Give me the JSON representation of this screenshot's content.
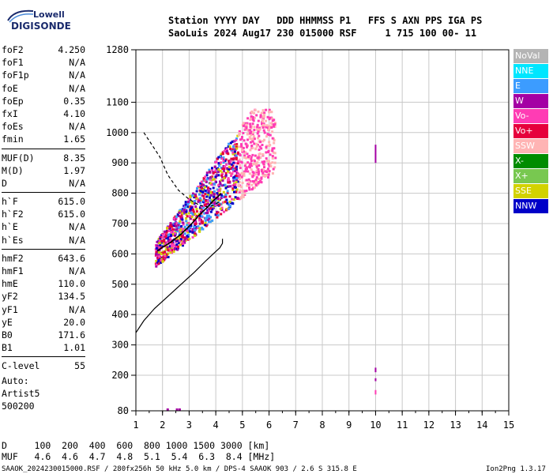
{
  "logo": {
    "top": "Lowell",
    "bottom": "DIGISONDE"
  },
  "header": {
    "line1": "Station YYYY DAY   DDD HHMMSS P1   FFS S AXN PPS IGA PS",
    "line2": "SaoLuis 2024 Aug17 230 015000 RSF     1 715 100 00- 11"
  },
  "params": [
    {
      "k": "foF2",
      "v": "4.250"
    },
    {
      "k": "foF1",
      "v": "N/A"
    },
    {
      "k": "foF1p",
      "v": "N/A"
    },
    {
      "k": "foE",
      "v": "N/A"
    },
    {
      "k": "foEp",
      "v": "0.35"
    },
    {
      "k": "fxI",
      "v": "4.10"
    },
    {
      "k": "foEs",
      "v": "N/A"
    },
    {
      "k": "fmin",
      "v": "1.65"
    },
    {
      "k": "MUF(D)",
      "v": "8.35"
    },
    {
      "k": "M(D)",
      "v": "1.97"
    },
    {
      "k": "D",
      "v": "N/A"
    },
    {
      "k": "h`F",
      "v": "615.0"
    },
    {
      "k": "h`F2",
      "v": "615.0"
    },
    {
      "k": "h`E",
      "v": "N/A"
    },
    {
      "k": "h`Es",
      "v": "N/A"
    },
    {
      "k": "hmF2",
      "v": "643.6"
    },
    {
      "k": "hmF1",
      "v": "N/A"
    },
    {
      "k": "hmE",
      "v": "110.0"
    },
    {
      "k": "yF2",
      "v": "134.5"
    },
    {
      "k": "yF1",
      "v": "N/A"
    },
    {
      "k": "yE",
      "v": "20.0"
    },
    {
      "k": "B0",
      "v": "171.6"
    },
    {
      "k": "B1",
      "v": "1.01"
    },
    {
      "k": "C-level",
      "v": "55"
    }
  ],
  "auto": [
    "Auto:",
    "Artist5",
    "500200"
  ],
  "legend": [
    {
      "label": "NoVal",
      "color": "#b4b4b4"
    },
    {
      "label": "NNE",
      "color": "#00e6ff"
    },
    {
      "label": "E",
      "color": "#3c9cff"
    },
    {
      "label": "W",
      "color": "#a400a4"
    },
    {
      "label": "Vo-",
      "color": "#ff3cb4"
    },
    {
      "label": "Vo+",
      "color": "#e6003c"
    },
    {
      "label": "SSW",
      "color": "#ffb4b4"
    },
    {
      "label": "X-",
      "color": "#008c00"
    },
    {
      "label": "X+",
      "color": "#78c850"
    },
    {
      "label": "SSE",
      "color": "#d2d200"
    },
    {
      "label": "NNW",
      "color": "#0000c8"
    }
  ],
  "footer": {
    "d_line": "D     100  200  400  600  800 1000 1500 3000 [km]",
    "muf_line": "MUF   4.6  4.6  4.7  4.8  5.1  5.4  6.3  8.4 [MHz]",
    "info": "SAAOK_2024230015000.RSF / 280fx256h 50 kHz 5.0 km / DPS-4 SAAOK 903 / 2.6 S 315.8 E",
    "version": "Ion2Png 1.3.17"
  },
  "chart_data": {
    "type": "scatter",
    "xlim": [
      1,
      15
    ],
    "ylim": [
      80,
      1280
    ],
    "x_ticks": [
      "1",
      "2",
      "3",
      "4",
      "5",
      "6",
      "7",
      "8",
      "9",
      "10",
      "11",
      "12",
      "13",
      "14",
      "15"
    ],
    "y_ticks": [
      "80",
      "200",
      "300",
      "400",
      "500",
      "600",
      "700",
      "800",
      "900",
      "1000",
      "1100",
      "1280"
    ],
    "grid": true,
    "series": [
      {
        "name": "profile",
        "x": [
          1.0,
          1.3,
          1.7,
          2.2,
          2.7,
          3.2,
          3.6,
          3.9,
          4.15,
          4.25,
          4.25
        ],
        "y": [
          340,
          380,
          420,
          460,
          500,
          540,
          575,
          600,
          620,
          635,
          650
        ]
      },
      {
        "name": "trace",
        "x": [
          1.8,
          2.0,
          2.3,
          2.7,
          3.1,
          3.4,
          3.7,
          3.9,
          4.1,
          4.2
        ],
        "y": [
          610,
          622,
          638,
          665,
          700,
          730,
          755,
          775,
          790,
          800
        ]
      },
      {
        "name": "dashed",
        "x": [
          1.3,
          1.6,
          1.9,
          2.2,
          2.6,
          3.0,
          3.4,
          3.7,
          3.9,
          4.1,
          4.2
        ],
        "y": [
          1000,
          960,
          920,
          860,
          810,
          780,
          760,
          755,
          760,
          770,
          780
        ]
      }
    ]
  }
}
